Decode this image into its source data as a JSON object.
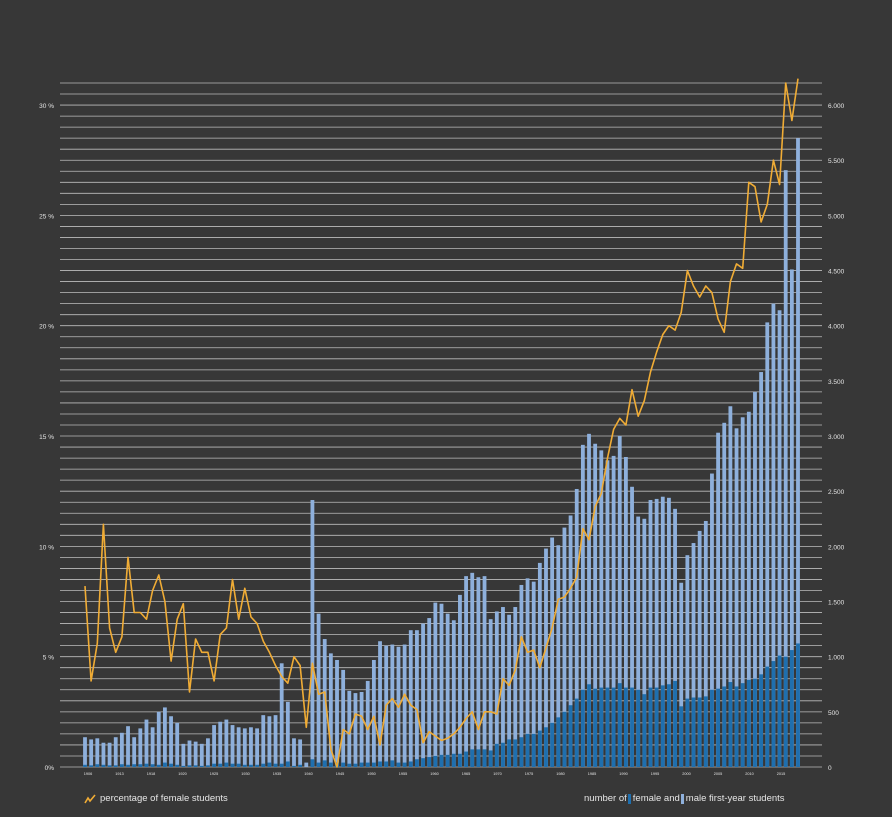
{
  "chart_data": {
    "type": "bar",
    "title": "",
    "legend": {
      "line_label": "percentage of female students",
      "bars_prefix": "number of",
      "female_label": "female and",
      "male_label": "male first-year students"
    },
    "left_axis": {
      "unit": "percent",
      "range": [
        0,
        31
      ],
      "ticks": [
        {
          "value": 0,
          "label": "0%"
        },
        {
          "value": 5,
          "label": "5 %"
        },
        {
          "value": 10,
          "label": "10 %"
        },
        {
          "value": 15,
          "label": "15 %"
        },
        {
          "value": 20,
          "label": "20 %"
        },
        {
          "value": 25,
          "label": "25 %"
        },
        {
          "value": 30,
          "label": "30 %"
        }
      ]
    },
    "right_axis": {
      "unit": "students",
      "range": [
        0,
        6200
      ],
      "ticks": [
        {
          "value": 0,
          "label": "0"
        },
        {
          "value": 500,
          "label": "500"
        },
        {
          "value": 1000,
          "label": "1.000"
        },
        {
          "value": 1500,
          "label": "1.500"
        },
        {
          "value": 2000,
          "label": "2.000"
        },
        {
          "value": 2500,
          "label": "2.500"
        },
        {
          "value": 3000,
          "label": "3.000"
        },
        {
          "value": 3500,
          "label": "3.500"
        },
        {
          "value": 4000,
          "label": "4.000"
        },
        {
          "value": 4500,
          "label": "4.500"
        },
        {
          "value": 5000,
          "label": "5.000"
        },
        {
          "value": 5500,
          "label": "5.500"
        },
        {
          "value": 6000,
          "label": "6.000"
        }
      ]
    },
    "x_tick_labels": [
      "1906",
      "1913",
      "1918",
      "1920",
      "1925",
      "1930",
      "1935",
      "1940",
      "1945",
      "1950",
      "1955",
      "1960",
      "1965",
      "1970",
      "1975",
      "1980",
      "1985",
      "1990",
      "1995",
      "2000",
      "2005",
      "2010",
      "2015"
    ],
    "series": [
      {
        "name": "male first-year students",
        "kind": "bar",
        "values": [
          270,
          250,
          260,
          220,
          220,
          270,
          310,
          370,
          270,
          350,
          430,
          360,
          500,
          540,
          460,
          400,
          210,
          240,
          230,
          210,
          260,
          380,
          410,
          430,
          380,
          360,
          350,
          360,
          350,
          470,
          460,
          470,
          940,
          590,
          260,
          250,
          40,
          2420,
          1390,
          1160,
          1030,
          970,
          880,
          690,
          670,
          680,
          780,
          970,
          1140,
          1100,
          1110,
          1090,
          1110,
          1240,
          1240,
          1300,
          1350,
          1490,
          1480,
          1390,
          1330,
          1560,
          1730,
          1760,
          1720,
          1730,
          1340,
          1410,
          1450,
          1380,
          1450,
          1650,
          1710,
          1680,
          1850,
          1980,
          2080,
          2010,
          2170,
          2280,
          2520,
          2920,
          3020,
          2930,
          2870,
          2780,
          2820,
          3000,
          2810,
          2540,
          2270,
          2250,
          2420,
          2430,
          2450,
          2440,
          2340,
          1670,
          1920,
          2030,
          2140,
          2230,
          2660,
          3030,
          3120,
          3270,
          3070,
          3170,
          3220,
          3400,
          3580,
          4030,
          4200,
          4140,
          5410,
          4510,
          5700
        ],
        "color": "#8eb0dc"
      },
      {
        "name": "female first-year students",
        "kind": "bar",
        "values": [
          20,
          15,
          25,
          20,
          15,
          15,
          25,
          20,
          25,
          25,
          30,
          25,
          20,
          40,
          30,
          20,
          10,
          15,
          15,
          10,
          15,
          30,
          30,
          40,
          30,
          30,
          20,
          20,
          20,
          30,
          40,
          30,
          30,
          50,
          10,
          20,
          0,
          70,
          40,
          60,
          40,
          40,
          40,
          30,
          30,
          40,
          40,
          40,
          50,
          50,
          60,
          40,
          40,
          50,
          70,
          80,
          90,
          100,
          110,
          110,
          120,
          120,
          140,
          160,
          160,
          160,
          150,
          210,
          220,
          250,
          250,
          270,
          300,
          300,
          330,
          360,
          400,
          450,
          500,
          560,
          620,
          700,
          750,
          710,
          720,
          720,
          720,
          760,
          720,
          720,
          700,
          660,
          720,
          720,
          740,
          750,
          780,
          550,
          620,
          630,
          630,
          640,
          700,
          710,
          730,
          770,
          730,
          760,
          790,
          800,
          840,
          910,
          960,
          1010,
          1000,
          1060,
          1120
        ],
        "color": "#1f6fae"
      },
      {
        "name": "percentage of female students",
        "kind": "line",
        "values": [
          8.2,
          3.9,
          5.6,
          11.0,
          6.3,
          5.2,
          5.9,
          9.5,
          7.0,
          7.0,
          6.7,
          8.0,
          8.7,
          7.5,
          4.8,
          6.7,
          7.4,
          3.4,
          5.8,
          5.2,
          5.2,
          3.9,
          6.0,
          6.3,
          8.5,
          6.7,
          8.1,
          6.8,
          6.5,
          5.7,
          5.2,
          4.6,
          4.1,
          3.8,
          5.0,
          4.6,
          1.8,
          4.7,
          3.3,
          3.4,
          0.8,
          0.0,
          1.7,
          1.5,
          2.4,
          2.3,
          1.7,
          2.3,
          1.0,
          2.8,
          3.1,
          2.7,
          3.3,
          2.8,
          2.6,
          1.1,
          1.6,
          1.4,
          1.2,
          1.3,
          1.5,
          1.8,
          2.2,
          2.5,
          1.7,
          2.5,
          2.5,
          2.4,
          4.0,
          3.7,
          4.4,
          5.9,
          5.2,
          5.3,
          4.5,
          5.4,
          6.3,
          7.6,
          7.7,
          8.1,
          8.6,
          10.8,
          10.3,
          11.8,
          12.4,
          14.0,
          15.3,
          15.8,
          15.5,
          17.1,
          15.9,
          16.6,
          17.9,
          18.8,
          19.6,
          20.0,
          19.8,
          20.6,
          22.5,
          21.8,
          21.3,
          21.8,
          21.5,
          20.3,
          19.7,
          22.0,
          22.8,
          22.6,
          26.5,
          26.3,
          24.7,
          25.5,
          27.5,
          26.4,
          31.0,
          29.3,
          31.2
        ],
        "color": "#f0ac35"
      }
    ],
    "grid": "horizontal lines on",
    "colors": {
      "background": "#373737",
      "grid": "#bdbdbd",
      "text": "#e6e6e6"
    }
  }
}
